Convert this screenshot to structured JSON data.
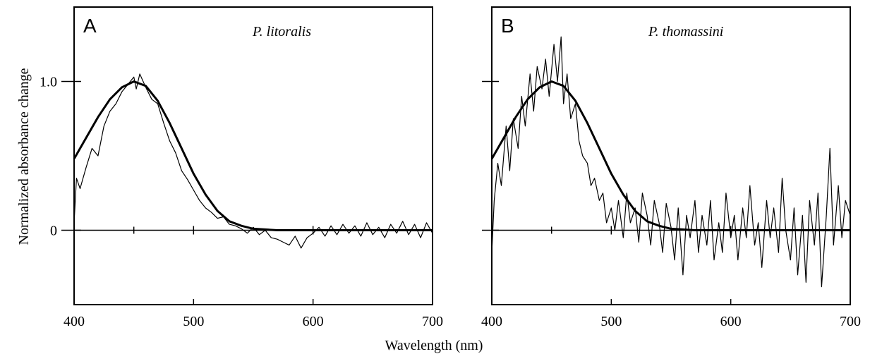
{
  "figure": {
    "ylabel": "Normalized absorbance change",
    "xlabel": "Wavelength (nm)"
  },
  "chart_data": [
    {
      "type": "line",
      "panel_letter": "A",
      "title": "P. litoralis",
      "xlim": [
        400,
        700
      ],
      "ylim": [
        -0.5,
        1.5
      ],
      "x_ticks": [
        400,
        500,
        600,
        700
      ],
      "y_ticks": [
        0,
        1.0
      ],
      "y_tick_labels": [
        "0",
        "1.0"
      ],
      "grid": false,
      "series": [
        {
          "role": "fitted-curve",
          "x": [
            400,
            410,
            420,
            430,
            440,
            450,
            460,
            470,
            480,
            490,
            500,
            510,
            520,
            530,
            540,
            550,
            560,
            570,
            580,
            600,
            620,
            650,
            700
          ],
          "y": [
            0.48,
            0.62,
            0.76,
            0.88,
            0.96,
            1.0,
            0.97,
            0.87,
            0.72,
            0.55,
            0.38,
            0.24,
            0.13,
            0.06,
            0.03,
            0.01,
            0.005,
            0.0,
            0.0,
            0.0,
            0.0,
            0.0,
            0.0
          ]
        },
        {
          "role": "measured-data",
          "x": [
            400,
            402,
            405,
            410,
            415,
            420,
            425,
            430,
            435,
            440,
            445,
            450,
            452,
            455,
            460,
            465,
            470,
            475,
            480,
            485,
            490,
            495,
            500,
            505,
            510,
            515,
            520,
            525,
            530,
            535,
            540,
            545,
            550,
            555,
            560,
            565,
            570,
            575,
            580,
            585,
            590,
            595,
            600,
            605,
            610,
            615,
            620,
            625,
            630,
            635,
            640,
            645,
            650,
            655,
            660,
            665,
            670,
            675,
            680,
            685,
            690,
            695,
            700
          ],
          "y": [
            0.05,
            0.35,
            0.28,
            0.42,
            0.55,
            0.5,
            0.7,
            0.8,
            0.85,
            0.93,
            0.98,
            1.03,
            0.95,
            1.05,
            0.96,
            0.88,
            0.85,
            0.72,
            0.6,
            0.52,
            0.4,
            0.34,
            0.27,
            0.2,
            0.15,
            0.12,
            0.08,
            0.09,
            0.04,
            0.03,
            0.01,
            -0.02,
            0.02,
            -0.03,
            0.0,
            -0.05,
            -0.06,
            -0.08,
            -0.1,
            -0.04,
            -0.12,
            -0.05,
            -0.02,
            0.02,
            -0.04,
            0.03,
            -0.03,
            0.04,
            -0.02,
            0.03,
            -0.04,
            0.05,
            -0.03,
            0.02,
            -0.05,
            0.04,
            -0.02,
            0.06,
            -0.03,
            0.04,
            -0.05,
            0.05,
            -0.02
          ]
        }
      ]
    },
    {
      "type": "line",
      "panel_letter": "B",
      "title": "P. thomassini",
      "xlim": [
        400,
        700
      ],
      "ylim": [
        -0.5,
        1.5
      ],
      "x_ticks": [
        400,
        500,
        600,
        700
      ],
      "y_ticks": [
        0,
        1.0
      ],
      "y_tick_labels": [
        "",
        ""
      ],
      "grid": false,
      "series": [
        {
          "role": "fitted-curve",
          "x": [
            400,
            410,
            420,
            430,
            440,
            450,
            460,
            470,
            480,
            490,
            500,
            510,
            520,
            530,
            540,
            550,
            560,
            570,
            580,
            600,
            620,
            650,
            700
          ],
          "y": [
            0.48,
            0.62,
            0.76,
            0.88,
            0.96,
            1.0,
            0.97,
            0.87,
            0.72,
            0.55,
            0.38,
            0.24,
            0.13,
            0.06,
            0.03,
            0.01,
            0.005,
            0.0,
            0.0,
            0.0,
            0.0,
            0.0,
            0.0
          ]
        },
        {
          "role": "measured-data",
          "x": [
            400,
            402,
            405,
            408,
            412,
            415,
            418,
            422,
            425,
            428,
            432,
            435,
            438,
            442,
            445,
            448,
            452,
            455,
            458,
            460,
            463,
            466,
            470,
            473,
            476,
            480,
            483,
            486,
            490,
            493,
            496,
            500,
            503,
            506,
            510,
            513,
            516,
            520,
            523,
            526,
            530,
            533,
            536,
            540,
            543,
            546,
            550,
            553,
            556,
            560,
            563,
            566,
            570,
            573,
            576,
            580,
            583,
            586,
            590,
            593,
            596,
            600,
            603,
            606,
            610,
            613,
            616,
            620,
            623,
            626,
            630,
            633,
            636,
            640,
            643,
            646,
            650,
            653,
            656,
            660,
            663,
            666,
            670,
            673,
            676,
            680,
            683,
            686,
            690,
            693,
            696,
            700
          ],
          "y": [
            -0.15,
            0.2,
            0.45,
            0.3,
            0.7,
            0.4,
            0.75,
            0.55,
            0.9,
            0.7,
            1.05,
            0.8,
            1.1,
            0.95,
            1.15,
            0.9,
            1.25,
            1.0,
            1.3,
            0.85,
            1.05,
            0.75,
            0.85,
            0.6,
            0.5,
            0.45,
            0.3,
            0.35,
            0.2,
            0.25,
            0.05,
            0.15,
            0.0,
            0.2,
            -0.05,
            0.25,
            0.05,
            0.15,
            -0.08,
            0.25,
            0.1,
            -0.1,
            0.2,
            0.05,
            -0.15,
            0.18,
            0.02,
            -0.2,
            0.15,
            -0.3,
            0.1,
            -0.05,
            0.2,
            -0.15,
            0.1,
            -0.1,
            0.2,
            -0.2,
            0.05,
            -0.15,
            0.25,
            -0.05,
            0.1,
            -0.2,
            0.15,
            -0.05,
            0.3,
            -0.1,
            0.05,
            -0.25,
            0.2,
            -0.05,
            0.15,
            -0.15,
            0.35,
            0.0,
            -0.2,
            0.15,
            -0.3,
            0.1,
            -0.35,
            0.2,
            -0.1,
            0.25,
            -0.38,
            0.1,
            0.55,
            -0.1,
            0.3,
            -0.05,
            0.2,
            0.1
          ]
        }
      ]
    }
  ]
}
